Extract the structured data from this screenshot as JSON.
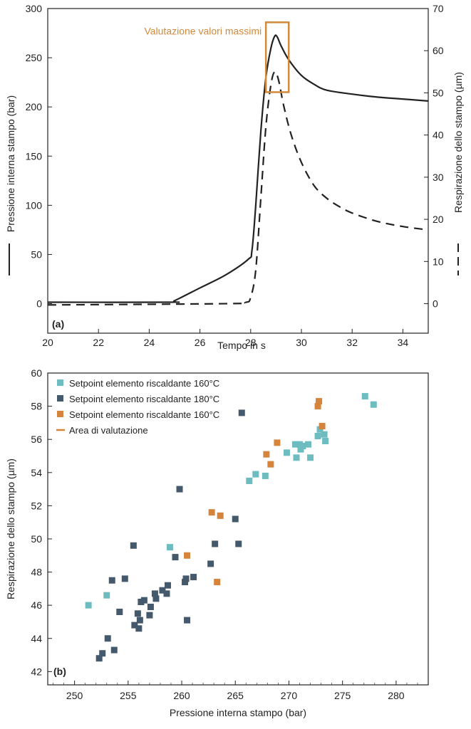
{
  "chart_data": [
    {
      "panel": "(a)",
      "type": "line",
      "xlabel": "Tempo in  s",
      "ylabel": "Pressione interna stampo (bar)",
      "y2label": "Respirazione dello stampo (µm)",
      "xlim": [
        20,
        35
      ],
      "ylim": [
        -30,
        300
      ],
      "y2lim": [
        -7,
        70
      ],
      "xticks": [
        20,
        22,
        24,
        26,
        28,
        30,
        32,
        34
      ],
      "yticks": [
        0,
        50,
        100,
        150,
        200,
        250,
        300
      ],
      "y2ticks": [
        0,
        10,
        20,
        30,
        40,
        50,
        60,
        70
      ],
      "annotation": {
        "text": "Valutazione valori massimi",
        "color": "#d08a3a",
        "x_range": [
          28.6,
          29.5
        ],
        "y_range": [
          215,
          286
        ]
      },
      "series": [
        {
          "style": "solid",
          "axis": "left",
          "color": "#222222",
          "points": [
            [
              20,
              1.5
            ],
            [
              24.8,
              1.5
            ],
            [
              25.0,
              3
            ],
            [
              26,
              16
            ],
            [
              27,
              29
            ],
            [
              27.9,
              45
            ],
            [
              28.05,
              54
            ],
            [
              28.2,
              100
            ],
            [
              28.4,
              175
            ],
            [
              28.6,
              230
            ],
            [
              28.8,
              260
            ],
            [
              28.95,
              272
            ],
            [
              29.05,
              271
            ],
            [
              29.2,
              262
            ],
            [
              29.5,
              248
            ],
            [
              30,
              232
            ],
            [
              30.5,
              223
            ],
            [
              31,
              217
            ],
            [
              32,
              213
            ],
            [
              33,
              210
            ],
            [
              34,
              208
            ],
            [
              35,
              206
            ]
          ]
        },
        {
          "style": "dashed",
          "axis": "right",
          "color": "#222222",
          "points": [
            [
              20,
              -0.3
            ],
            [
              27,
              0
            ],
            [
              27.8,
              0.3
            ],
            [
              28.0,
              1.5
            ],
            [
              28.2,
              8
            ],
            [
              28.4,
              25
            ],
            [
              28.6,
              42
            ],
            [
              28.8,
              52
            ],
            [
              28.95,
              55
            ],
            [
              29.1,
              53
            ],
            [
              29.3,
              47
            ],
            [
              29.6,
              40
            ],
            [
              30,
              33.5
            ],
            [
              30.5,
              28
            ],
            [
              31,
              25
            ],
            [
              31.5,
              23
            ],
            [
              32,
              21.5
            ],
            [
              33,
              19.5
            ],
            [
              34,
              18.3
            ],
            [
              35,
              17.5
            ]
          ]
        }
      ]
    },
    {
      "panel": "(b)",
      "type": "scatter",
      "xlabel": "Pressione interna stampo (bar)",
      "ylabel": "Respirazione dello stampo (µm)",
      "xlim": [
        247.5,
        283
      ],
      "ylim": [
        41.2,
        60
      ],
      "xticks": [
        250,
        255,
        260,
        265,
        270,
        275,
        280
      ],
      "yticks": [
        42,
        44,
        46,
        48,
        50,
        52,
        54,
        56,
        58,
        60
      ],
      "legend_placement": "top-left",
      "legend": [
        {
          "label": "Setpoint elemento riscaldante 160°C",
          "marker": "square",
          "color": "#6dbcbf"
        },
        {
          "label": "Setpoint elemento riscaldante 180°C",
          "marker": "square",
          "color": "#44596b"
        },
        {
          "label": "Setpoint elemento riscaldante 160°C",
          "marker": "square",
          "color": "#d6843b"
        },
        {
          "label": "Area di valutazione",
          "marker": "line",
          "color": "#d6843b"
        }
      ],
      "series": [
        {
          "color": "#6dbcbf",
          "points": [
            [
              251.3,
              46.0
            ],
            [
              253.0,
              46.6
            ],
            [
              258.9,
              49.5
            ],
            [
              266.3,
              53.5
            ],
            [
              266.9,
              53.9
            ],
            [
              267.8,
              53.8
            ],
            [
              269.8,
              55.2
            ],
            [
              270.6,
              55.7
            ],
            [
              270.7,
              54.9
            ],
            [
              271.0,
              55.7
            ],
            [
              271.1,
              55.4
            ],
            [
              271.3,
              55.6
            ],
            [
              271.8,
              55.7
            ],
            [
              272.0,
              54.9
            ],
            [
              272.7,
              56.2
            ],
            [
              272.9,
              56.6
            ],
            [
              273.3,
              56.3
            ],
            [
              273.4,
              55.9
            ],
            [
              277.1,
              58.6
            ],
            [
              277.9,
              58.1
            ]
          ]
        },
        {
          "color": "#44596b",
          "points": [
            [
              252.3,
              42.8
            ],
            [
              252.6,
              43.1
            ],
            [
              253.1,
              44.0
            ],
            [
              253.5,
              47.5
            ],
            [
              253.7,
              43.3
            ],
            [
              254.2,
              45.6
            ],
            [
              254.7,
              47.6
            ],
            [
              255.5,
              49.6
            ],
            [
              255.6,
              44.8
            ],
            [
              255.9,
              45.5
            ],
            [
              256.0,
              44.6
            ],
            [
              256.1,
              45.1
            ],
            [
              256.2,
              46.2
            ],
            [
              256.5,
              46.3
            ],
            [
              257.0,
              45.4
            ],
            [
              257.1,
              45.9
            ],
            [
              257.5,
              46.7
            ],
            [
              257.6,
              46.4
            ],
            [
              258.2,
              46.9
            ],
            [
              258.6,
              46.7
            ],
            [
              258.7,
              47.2
            ],
            [
              259.4,
              48.9
            ],
            [
              259.8,
              53.0
            ],
            [
              260.3,
              47.4
            ],
            [
              260.4,
              47.6
            ],
            [
              260.5,
              45.1
            ],
            [
              261.1,
              47.7
            ],
            [
              262.7,
              48.5
            ],
            [
              263.1,
              49.7
            ],
            [
              265.0,
              51.2
            ],
            [
              265.3,
              49.7
            ],
            [
              265.6,
              57.6
            ]
          ]
        },
        {
          "color": "#d6843b",
          "points": [
            [
              260.5,
              49.0
            ],
            [
              262.8,
              51.6
            ],
            [
              263.3,
              47.4
            ],
            [
              263.6,
              51.4
            ],
            [
              267.9,
              55.1
            ],
            [
              268.3,
              54.5
            ],
            [
              268.9,
              55.8
            ],
            [
              272.7,
              58.0
            ],
            [
              272.8,
              58.3
            ],
            [
              273.1,
              56.8
            ]
          ]
        }
      ]
    }
  ]
}
